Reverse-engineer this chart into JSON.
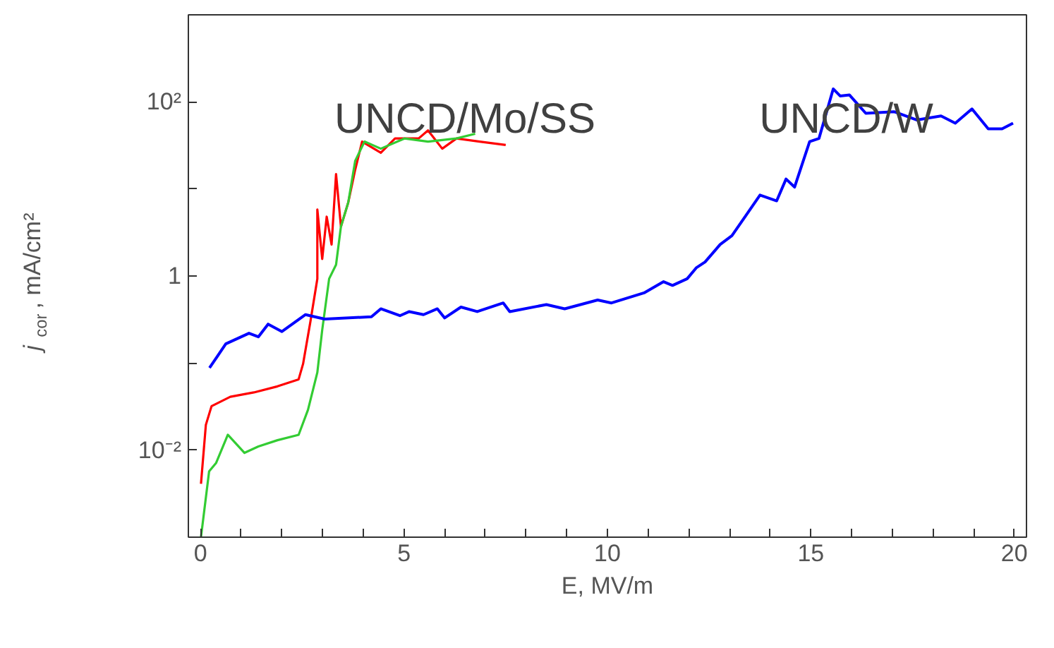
{
  "chart_data": {
    "type": "line",
    "xlabel": "E, MV/m",
    "ylabel": "j$_{cor}$, mA/cm²",
    "log": "y",
    "xlim": [
      -0.3,
      20.3
    ],
    "ylim": [
      0.001,
      1000
    ],
    "xticks": [
      0,
      {
        "value": 1,
        "label": null
      },
      {
        "value": 2,
        "label": null
      },
      {
        "value": 3,
        "label": null
      },
      {
        "value": 4,
        "label": null
      },
      5,
      {
        "value": 6,
        "label": null
      },
      {
        "value": 7,
        "label": null
      },
      {
        "value": 8,
        "label": null
      },
      {
        "value": 9,
        "label": null
      },
      10,
      {
        "value": 11,
        "label": null
      },
      {
        "value": 12,
        "label": null
      },
      {
        "value": 13,
        "label": null
      },
      {
        "value": 14,
        "label": null
      },
      15,
      {
        "value": 16,
        "label": null
      },
      {
        "value": 17,
        "label": null
      },
      {
        "value": 18,
        "label": null
      },
      {
        "value": 19,
        "label": null
      },
      20
    ],
    "yticks": [
      {
        "value": 0.01,
        "label": "10⁻²"
      },
      {
        "value": 0.1,
        "label": null
      },
      1,
      {
        "value": 10,
        "label": null
      },
      {
        "value": 100,
        "label": "10²"
      }
    ],
    "series": [
      {
        "color": "#ff0000",
        "x": [
          0.01,
          0.13,
          0.27,
          0.73,
          1.31,
          1.89,
          2.41,
          2.52,
          2.7,
          2.87,
          2.87,
          2.99,
          3.1,
          3.22,
          3.33,
          3.45,
          3.63,
          3.8,
          3.97,
          4.43,
          4.78,
          5.36,
          5.59,
          5.94,
          6.29,
          6.86,
          7.5
        ],
        "values": [
          0.0041,
          0.0195,
          0.032,
          0.041,
          0.046,
          0.054,
          0.065,
          0.098,
          0.3,
          0.93,
          5.8,
          1.57,
          4.8,
          2.3,
          14.8,
          3.7,
          7.0,
          16.6,
          35,
          26,
          38,
          38,
          47,
          29,
          38,
          35,
          32
        ]
      },
      {
        "color": "#33cc33",
        "x": [
          0.01,
          0.21,
          0.38,
          0.67,
          1.08,
          1.42,
          1.89,
          2.41,
          2.64,
          2.87,
          2.99,
          3.16,
          3.33,
          3.45,
          3.63,
          3.8,
          4.03,
          4.43,
          5.01,
          5.59,
          6.29,
          6.75
        ],
        "values": [
          0.001,
          0.0057,
          0.0071,
          0.015,
          0.0093,
          0.011,
          0.013,
          0.015,
          0.029,
          0.078,
          0.24,
          0.93,
          1.35,
          3.7,
          7.0,
          21,
          35,
          29,
          38,
          35,
          38,
          43
        ]
      },
      {
        "color": "#0000ff",
        "x": [
          0.22,
          0.62,
          1.19,
          1.42,
          1.66,
          2.0,
          2.58,
          3.05,
          4.2,
          4.43,
          4.9,
          5.13,
          5.48,
          5.82,
          6.0,
          6.4,
          6.8,
          7.44,
          7.6,
          8.5,
          8.95,
          9.76,
          10.1,
          10.9,
          11.38,
          11.6,
          11.96,
          12.19,
          12.4,
          12.77,
          13.06,
          13.46,
          13.75,
          14.16,
          14.39,
          14.6,
          14.97,
          15.2,
          15.55,
          15.72,
          15.95,
          16.35,
          17.05,
          17.6,
          18.2,
          18.55,
          18.96,
          19.36,
          19.7,
          19.97
        ],
        "values": [
          0.088,
          0.166,
          0.22,
          0.2,
          0.28,
          0.23,
          0.36,
          0.32,
          0.34,
          0.42,
          0.35,
          0.39,
          0.36,
          0.42,
          0.33,
          0.44,
          0.39,
          0.49,
          0.39,
          0.47,
          0.42,
          0.53,
          0.49,
          0.64,
          0.86,
          0.78,
          0.93,
          1.25,
          1.45,
          2.3,
          2.9,
          5.4,
          8.5,
          7.3,
          13,
          10.5,
          35,
          38,
          141,
          117,
          120,
          74,
          77,
          62,
          69,
          57,
          83,
          49,
          49,
          57
        ]
      }
    ],
    "annotations": [
      "UNCD/Mo/SS",
      "UNCD/W"
    ]
  }
}
